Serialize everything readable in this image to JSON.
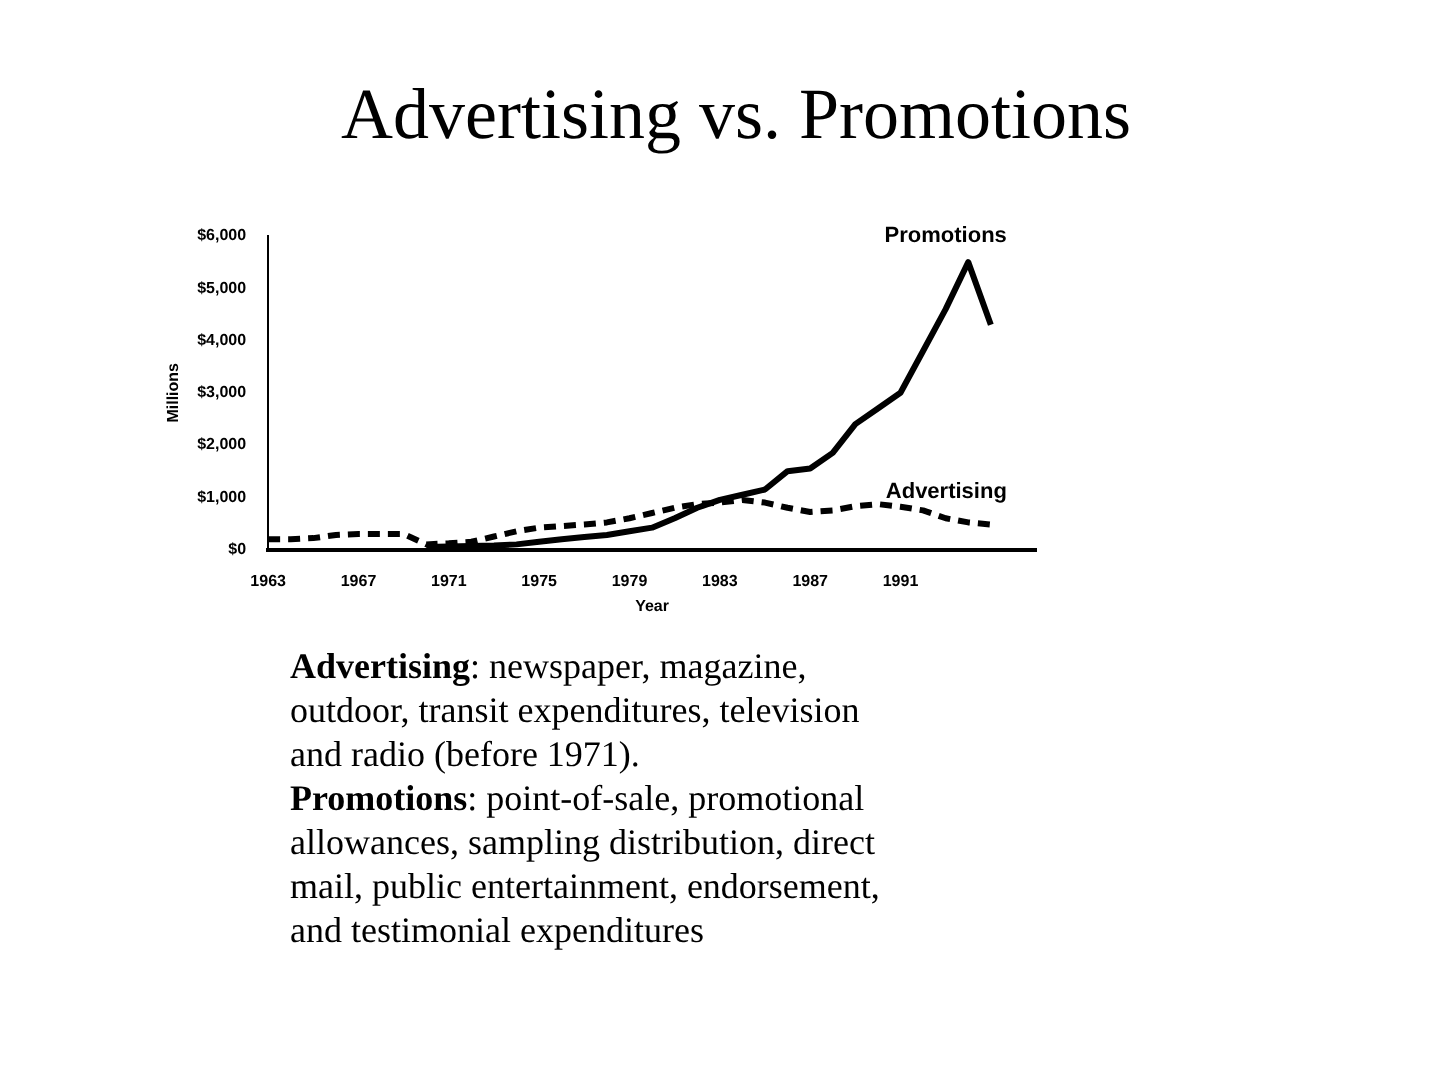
{
  "chart_data": {
    "type": "line",
    "title": "Advertising vs. Promotions",
    "xlabel": "Year",
    "ylabel": "Millions",
    "xlim": [
      1963,
      1997
    ],
    "xticks": [
      1963,
      1967,
      1971,
      1975,
      1979,
      1983,
      1987,
      1991
    ],
    "ylim": [
      0,
      6000
    ],
    "yticks": [
      {
        "value": 0,
        "label": "$0"
      },
      {
        "value": 1000,
        "label": "$1,000"
      },
      {
        "value": 2000,
        "label": "$2,000"
      },
      {
        "value": 3000,
        "label": "$3,000"
      },
      {
        "value": 4000,
        "label": "$4,000"
      },
      {
        "value": 5000,
        "label": "$5,000"
      },
      {
        "value": 6000,
        "label": "$6,000"
      }
    ],
    "grid": false,
    "legend": false,
    "marker": "none",
    "series": [
      {
        "name": "Promotions",
        "color": "#000000",
        "line_style": "solid",
        "x": [
          1970,
          1971,
          1972,
          1973,
          1974,
          1975,
          1976,
          1977,
          1978,
          1979,
          1980,
          1981,
          1982,
          1983,
          1984,
          1985,
          1986,
          1987,
          1988,
          1989,
          1990,
          1991,
          1992,
          1993,
          1994,
          1995
        ],
        "values": [
          50,
          60,
          70,
          80,
          100,
          150,
          200,
          240,
          280,
          350,
          420,
          600,
          800,
          950,
          1050,
          1150,
          1500,
          1550,
          1850,
          2400,
          2700,
          3000,
          3800,
          4600,
          5500,
          4300
        ]
      },
      {
        "name": "Advertising",
        "color": "#000000",
        "line_style": "dashed",
        "x": [
          1963,
          1964,
          1965,
          1966,
          1967,
          1968,
          1969,
          1970,
          1971,
          1972,
          1973,
          1974,
          1975,
          1976,
          1977,
          1978,
          1979,
          1980,
          1981,
          1982,
          1983,
          1984,
          1985,
          1986,
          1987,
          1988,
          1989,
          1990,
          1991,
          1992,
          1993,
          1994,
          1995
        ],
        "values": [
          200,
          200,
          220,
          280,
          300,
          300,
          300,
          100,
          120,
          150,
          250,
          350,
          420,
          450,
          480,
          520,
          600,
          700,
          800,
          870,
          900,
          950,
          900,
          800,
          720,
          750,
          830,
          870,
          820,
          750,
          600,
          520,
          480
        ]
      }
    ],
    "annotations": [
      "Advertising: newspaper, magazine, outdoor, transit expenditures, television and radio (before 1971).",
      "Promotions: point-of-sale, promotional allowances, sampling distribution, direct mail, public entertainment, endorsement, and testimonial expenditures"
    ]
  }
}
